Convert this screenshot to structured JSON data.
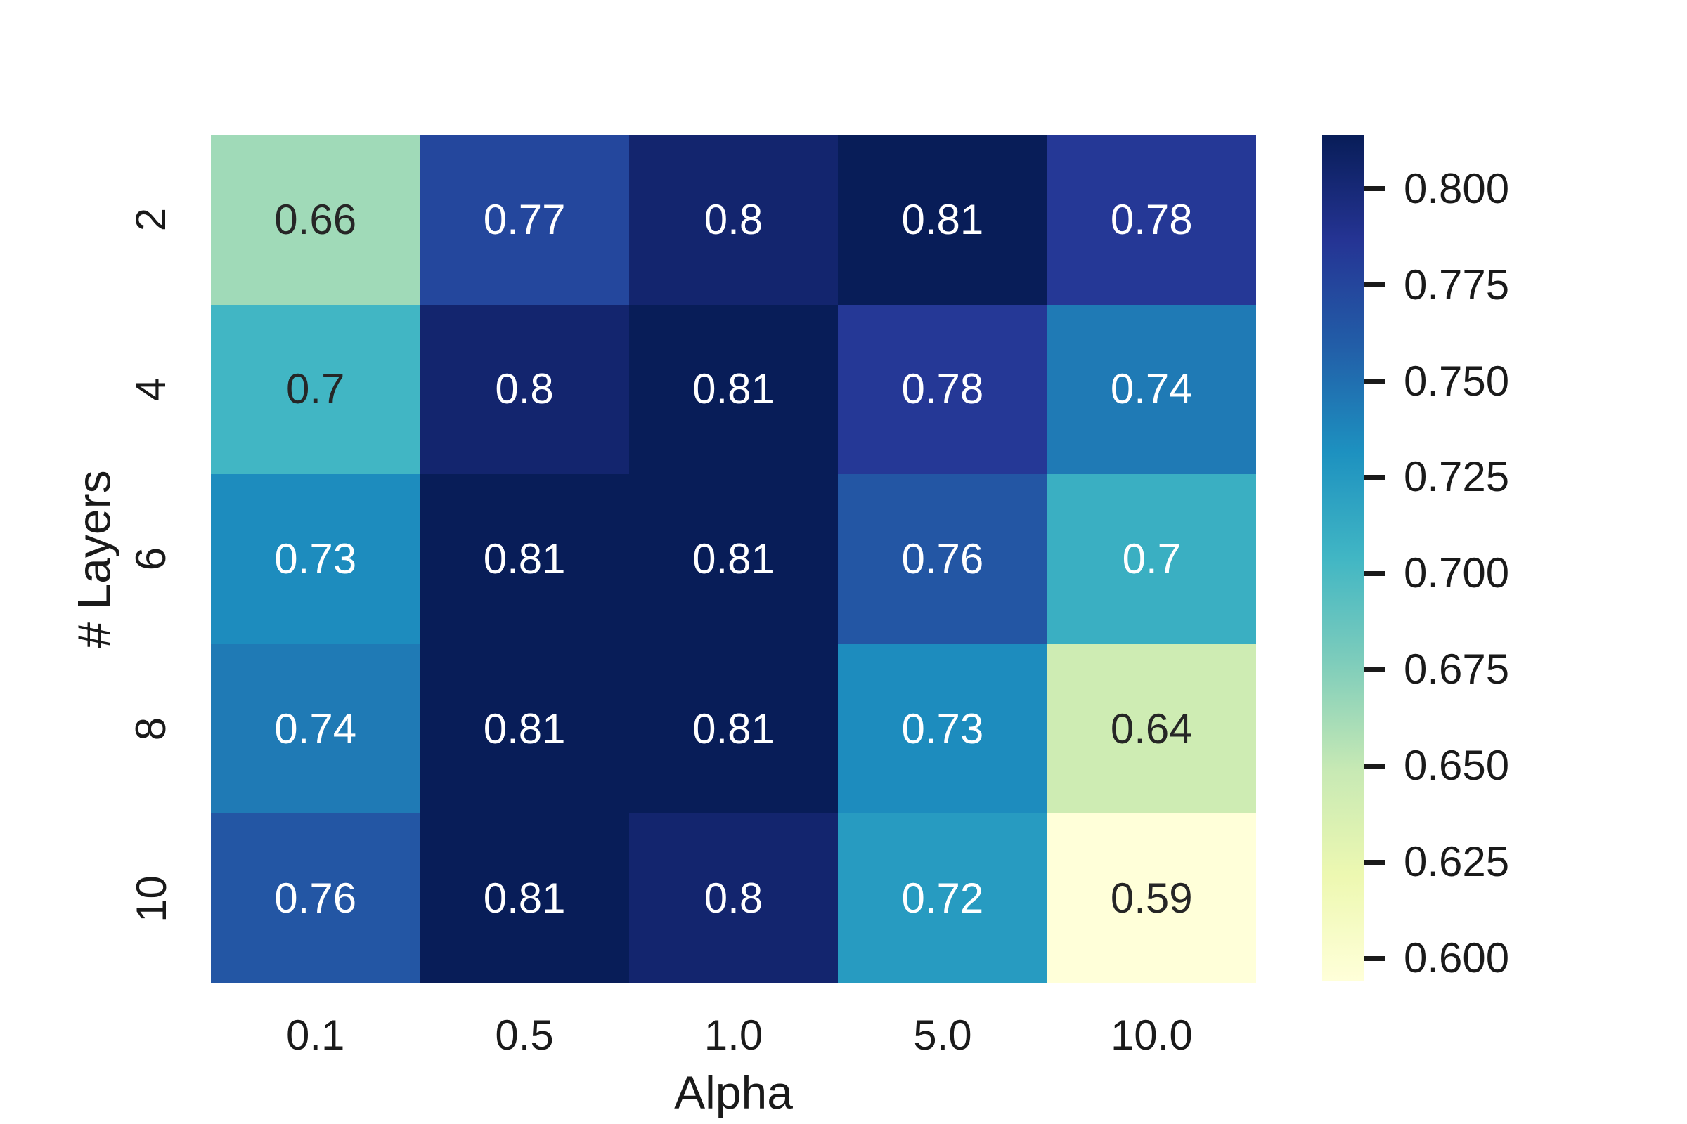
{
  "chart_data": {
    "type": "heatmap",
    "title": "",
    "xlabel": "Alpha",
    "ylabel": "# Layers",
    "x_ticklabels": [
      "0.1",
      "0.5",
      "1.0",
      "5.0",
      "10.0"
    ],
    "y_ticklabels": [
      "2",
      "4",
      "6",
      "8",
      "10"
    ],
    "values": [
      [
        0.66,
        0.77,
        0.8,
        0.81,
        0.78
      ],
      [
        0.7,
        0.8,
        0.81,
        0.78,
        0.74
      ],
      [
        0.73,
        0.81,
        0.81,
        0.76,
        0.7
      ],
      [
        0.74,
        0.81,
        0.81,
        0.73,
        0.64
      ],
      [
        0.76,
        0.81,
        0.8,
        0.72,
        0.59
      ]
    ],
    "colormap": "YlGnBu",
    "vmin": 0.59,
    "vmax": 0.81,
    "annotation_dark_color": "#262626",
    "annotation_light_color": "#ffffff",
    "colorbar": {
      "position": "right",
      "tick_labels": [
        "0.800",
        "0.775",
        "0.750",
        "0.725",
        "0.700",
        "0.675",
        "0.650",
        "0.625",
        "0.600"
      ],
      "gradient_stops": [
        "#ffffd9",
        "#edf8b1",
        "#c7e9b4",
        "#7fcdbb",
        "#41b6c4",
        "#1d91c0",
        "#225ea8",
        "#253494",
        "#081d58"
      ]
    },
    "grid": false,
    "legend": false
  },
  "cells": [
    {
      "label": "0.66",
      "bg": "#A0DAB8",
      "fg": "#262626"
    },
    {
      "label": "0.77",
      "bg": "#24479D",
      "fg": "#ffffff"
    },
    {
      "label": "0.8",
      "bg": "#13256E",
      "fg": "#ffffff"
    },
    {
      "label": "0.81",
      "bg": "#081D58",
      "fg": "#ffffff"
    },
    {
      "label": "0.78",
      "bg": "#253896",
      "fg": "#ffffff"
    },
    {
      "label": "0.7",
      "bg": "#41B6C4",
      "fg": "#262626"
    },
    {
      "label": "0.8",
      "bg": "#13256E",
      "fg": "#ffffff"
    },
    {
      "label": "0.81",
      "bg": "#081D58",
      "fg": "#ffffff"
    },
    {
      "label": "0.78",
      "bg": "#253896",
      "fg": "#ffffff"
    },
    {
      "label": "0.74",
      "bg": "#1F7AB5",
      "fg": "#ffffff"
    },
    {
      "label": "0.73",
      "bg": "#1D8CBE",
      "fg": "#ffffff"
    },
    {
      "label": "0.81",
      "bg": "#081D58",
      "fg": "#ffffff"
    },
    {
      "label": "0.81",
      "bg": "#081D58",
      "fg": "#ffffff"
    },
    {
      "label": "0.76",
      "bg": "#2356A4",
      "fg": "#ffffff"
    },
    {
      "label": "0.7",
      "bg": "#3AAFC2",
      "fg": "#ffffff"
    },
    {
      "label": "0.74",
      "bg": "#1F7AB5",
      "fg": "#ffffff"
    },
    {
      "label": "0.81",
      "bg": "#081D58",
      "fg": "#ffffff"
    },
    {
      "label": "0.81",
      "bg": "#081D58",
      "fg": "#ffffff"
    },
    {
      "label": "0.73",
      "bg": "#1D8CBE",
      "fg": "#ffffff"
    },
    {
      "label": "0.64",
      "bg": "#CEECB3",
      "fg": "#262626"
    },
    {
      "label": "0.76",
      "bg": "#2356A4",
      "fg": "#ffffff"
    },
    {
      "label": "0.81",
      "bg": "#081D58",
      "fg": "#ffffff"
    },
    {
      "label": "0.8",
      "bg": "#13256E",
      "fg": "#ffffff"
    },
    {
      "label": "0.72",
      "bg": "#279BC1",
      "fg": "#ffffff"
    },
    {
      "label": "0.59",
      "bg": "#FFFFD9",
      "fg": "#262626"
    }
  ],
  "colorbar_ticks": [
    {
      "label": "0.800",
      "top_pct": 6.36
    },
    {
      "label": "0.775",
      "top_pct": 17.73
    },
    {
      "label": "0.750",
      "top_pct": 29.09
    },
    {
      "label": "0.725",
      "top_pct": 40.45
    },
    {
      "label": "0.700",
      "top_pct": 51.82
    },
    {
      "label": "0.675",
      "top_pct": 63.18
    },
    {
      "label": "0.650",
      "top_pct": 74.55
    },
    {
      "label": "0.625",
      "top_pct": 85.91
    },
    {
      "label": "0.600",
      "top_pct": 97.27
    }
  ]
}
